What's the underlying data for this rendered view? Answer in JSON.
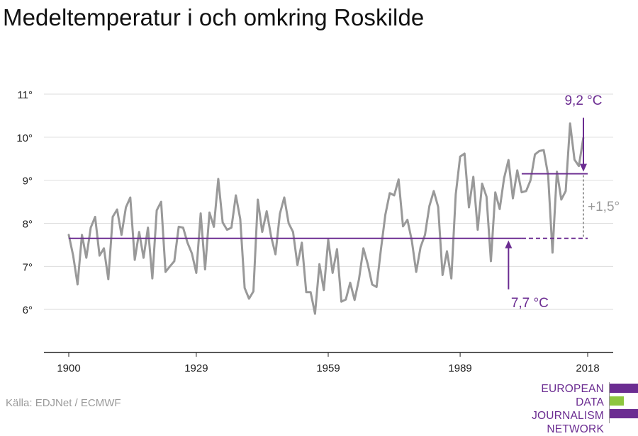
{
  "title": "Medeltemperatur i och omkring Roskilde",
  "source": "Källa: EDJNet / ECMWF",
  "logo": {
    "lines": [
      "EUROPEAN",
      "DATA JOURNALISM",
      "NETWORK"
    ],
    "colors": [
      "#6b2c91",
      "#8dc63f",
      "#6b2c91"
    ]
  },
  "colors": {
    "series": "#999999",
    "accent": "#6b2c91",
    "grid": "#dddddd",
    "delta": "#9a9a9a"
  },
  "chart_data": {
    "type": "line",
    "title": "Medeltemperatur i och omkring Roskilde",
    "xlim": [
      1900,
      2018
    ],
    "ylim": [
      5,
      11
    ],
    "x_ticks": [
      1900,
      1929,
      1959,
      1989,
      2018
    ],
    "x_tick_labels": [
      "1900",
      "1929",
      "1959",
      "1989",
      "2018"
    ],
    "y_ticks": [
      6,
      7,
      8,
      9,
      10,
      11
    ],
    "y_tick_labels": [
      "6°",
      "7°",
      "8°",
      "9°",
      "10°",
      "11°"
    ],
    "grid": true,
    "series": [
      {
        "x_start": 1900,
        "values": [
          7.73,
          7.25,
          6.58,
          7.73,
          7.2,
          7.9,
          8.15,
          7.25,
          7.42,
          6.7,
          8.15,
          8.32,
          7.73,
          8.37,
          8.6,
          7.15,
          7.8,
          7.2,
          7.9,
          6.72,
          8.3,
          8.5,
          6.87,
          7.0,
          7.12,
          7.92,
          7.9,
          7.55,
          7.3,
          6.85,
          8.23,
          6.93,
          8.25,
          7.92,
          9.03,
          8.02,
          7.85,
          7.9,
          8.65,
          8.1,
          6.5,
          6.25,
          6.42,
          8.55,
          7.8,
          8.28,
          7.7,
          7.28,
          8.22,
          8.6,
          8.0,
          7.8,
          7.03,
          7.55,
          6.4,
          6.4,
          5.9,
          7.05,
          6.45,
          7.62,
          6.85,
          7.4,
          6.18,
          6.23,
          6.62,
          6.22,
          6.7,
          7.42,
          7.05,
          6.58,
          6.52,
          7.4,
          8.2,
          8.7,
          8.65,
          9.02,
          7.93,
          8.08,
          7.6,
          6.87,
          7.45,
          7.73,
          8.4,
          8.75,
          8.38,
          6.8,
          7.35,
          6.72,
          8.67,
          9.55,
          9.62,
          8.37,
          9.08,
          7.85,
          8.92,
          8.62,
          7.12,
          8.72,
          8.33,
          9.05,
          9.47,
          8.58,
          9.23,
          8.72,
          8.75,
          9.0,
          9.6,
          9.68,
          9.7,
          9.12,
          7.32,
          9.2,
          8.55,
          8.75,
          10.32,
          9.48,
          9.33,
          9.98
        ]
      }
    ],
    "annotations": {
      "baseline": {
        "value": 7.65,
        "from": 1900,
        "to_solid": 2003,
        "to_dashed": 2018,
        "label": "7,7 °C"
      },
      "recent": {
        "value": 9.15,
        "from": 2003,
        "to": 2018,
        "label": "9,2 °C"
      },
      "delta_label": "+1,5°"
    }
  }
}
